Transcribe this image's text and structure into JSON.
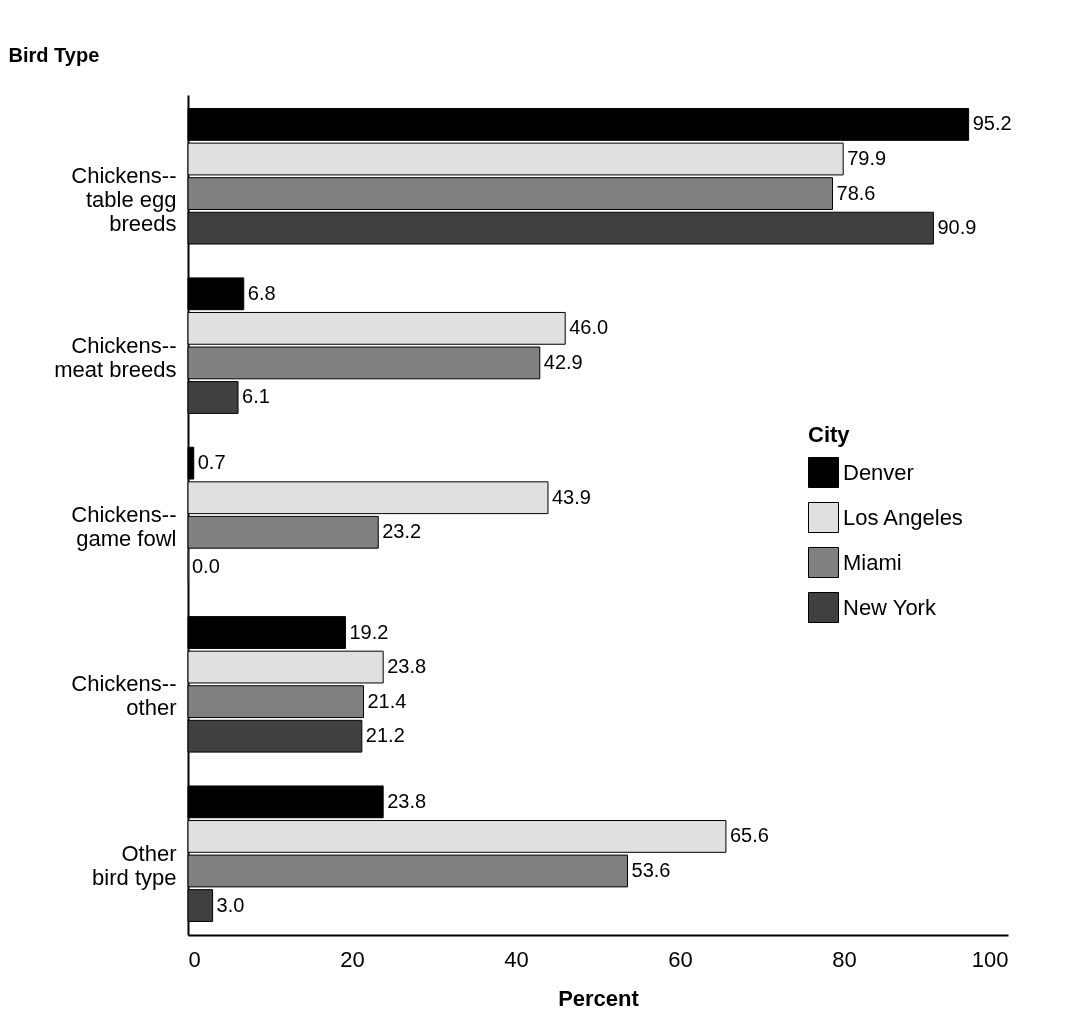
{
  "chart_data": {
    "type": "bar",
    "orientation": "horizontal",
    "xlabel": "Percent",
    "ylabel": "Bird Type",
    "legend_title": "City",
    "legend": "right",
    "categories": [
      "Chickens--\ntable egg\nbreeds",
      "Chickens--\nmeat breeds",
      "Chickens--\ngame fowl",
      "Chickens--\nother",
      "Other\nbird type"
    ],
    "series": [
      {
        "name": "Denver",
        "color": "#000000",
        "values": [
          95.2,
          6.8,
          0.7,
          19.2,
          23.8
        ],
        "value_labels": [
          "95.2",
          "6.8",
          "0.7",
          "19.2",
          "23.8"
        ]
      },
      {
        "name": "Los Angeles",
        "color": "#e0e0e0",
        "values": [
          79.9,
          46.0,
          43.9,
          23.8,
          65.6
        ],
        "value_labels": [
          "79.9",
          "46.0",
          "43.9",
          "23.8",
          "65.6"
        ]
      },
      {
        "name": "Miami",
        "color": "#808080",
        "values": [
          78.6,
          42.9,
          23.2,
          21.4,
          53.6
        ],
        "value_labels": [
          "78.6",
          "42.9",
          "23.2",
          "21.4",
          "53.6"
        ]
      },
      {
        "name": "New York",
        "color": "#404040",
        "values": [
          90.9,
          6.1,
          0.0,
          21.2,
          3.0
        ],
        "value_labels": [
          "90.9",
          "6.1",
          "0.0",
          "21.2",
          "3.0"
        ]
      }
    ],
    "xlim": [
      0,
      100
    ],
    "xticks": [
      0,
      20,
      40,
      60,
      80,
      100
    ],
    "grid": false
  }
}
